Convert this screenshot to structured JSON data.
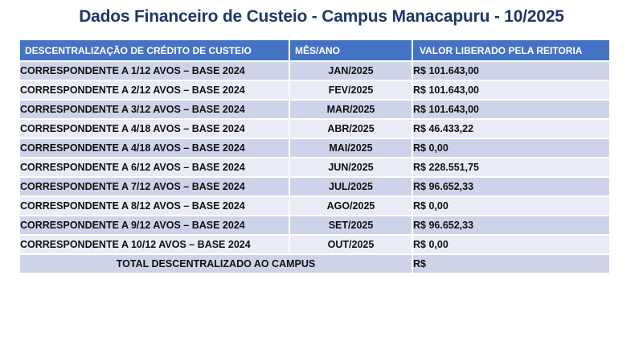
{
  "title": "Dados Financeiro de Custeio - Campus Manacapuru - 10/2025",
  "table": {
    "headers": {
      "description": "DESCENTRALIZAÇÃO DE CRÉDITO DE CUSTEIO",
      "month": "MÊS/ANO",
      "value": "VALOR LIBERADO PELA REITORIA"
    },
    "rows": [
      {
        "description": "CORRESPONDENTE A 1/12 AVOS – BASE 2024",
        "month": "JAN/2025",
        "value": "R$ 101.643,00"
      },
      {
        "description": "CORRESPONDENTE A 2/12 AVOS – BASE 2024",
        "month": "FEV/2025",
        "value": "R$ 101.643,00"
      },
      {
        "description": "CORRESPONDENTE A 3/12 AVOS – BASE 2024",
        "month": "MAR/2025",
        "value": "R$ 101.643,00"
      },
      {
        "description": "CORRESPONDENTE A 4/18 AVOS – BASE 2024",
        "month": "ABR/2025",
        "value": "R$ 46.433,22"
      },
      {
        "description": "CORRESPONDENTE A 4/18 AVOS – BASE 2024",
        "month": "MAI/2025",
        "value": "R$ 0,00"
      },
      {
        "description": "CORRESPONDENTE A 6/12 AVOS – BASE 2024",
        "month": "JUN/2025",
        "value": "R$ 228.551,75"
      },
      {
        "description": "CORRESPONDENTE A 7/12 AVOS – BASE 2024",
        "month": "JUL/2025",
        "value": "R$ 96.652,33"
      },
      {
        "description": "CORRESPONDENTE A 8/12 AVOS – BASE 2024",
        "month": "AGO/2025",
        "value": "R$ 0,00"
      },
      {
        "description": "CORRESPONDENTE A 9/12 AVOS – BASE 2024",
        "month": "SET/2025",
        "value": "R$ 96.652,33"
      },
      {
        "description": "CORRESPONDENTE A 10/12 AVOS – BASE 2024",
        "month": "OUT/2025",
        "value": "R$ 0,00"
      }
    ],
    "total": {
      "label": "TOTAL DESCENTRALIZADO AO CAMPUS",
      "value": "R$"
    }
  },
  "colors": {
    "title_text": "#1F3864",
    "header_bg": "#4472C4",
    "band_dark": "#CDD4E9",
    "band_light": "#E9EBF5"
  }
}
